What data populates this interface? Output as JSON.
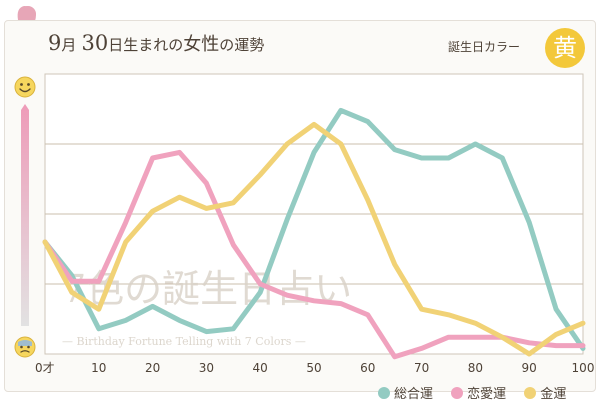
{
  "header": {
    "month": "9",
    "month_unit": "月",
    "day": "30",
    "born_text": "日生まれの",
    "gender": "女性",
    "fortune_text": "の運勢",
    "birth_color_label": "誕生日カラー",
    "birth_color_char": "黄",
    "birth_color_hex": "#f3c83a"
  },
  "watermark": {
    "main": "7色の誕生日占い",
    "sub": "— Birthday Fortune Telling with 7 Colors —"
  },
  "icons": {
    "top_face": "smile-face-icon",
    "bottom_face": "worried-face-icon",
    "silhouette": "woman-silhouette-icon"
  },
  "chart_data": {
    "type": "line",
    "x_label_suffix": "才",
    "x": [
      0,
      5,
      10,
      15,
      20,
      25,
      30,
      35,
      40,
      45,
      50,
      55,
      60,
      65,
      70,
      75,
      80,
      85,
      90,
      95,
      100
    ],
    "xlim": [
      0,
      100
    ],
    "ylim": [
      0,
      100
    ],
    "x_ticks": [
      "0才",
      "10",
      "20",
      "30",
      "40",
      "50",
      "60",
      "70",
      "80",
      "90",
      "100"
    ],
    "series": [
      {
        "name": "総合運",
        "color": "#93cbc2",
        "values": [
          40,
          28,
          9,
          12,
          17,
          12,
          8,
          9,
          22,
          48,
          72,
          87,
          83,
          73,
          70,
          70,
          75,
          70,
          47,
          16,
          2
        ]
      },
      {
        "name": "恋愛運",
        "color": "#f0a2be",
        "values": [
          40,
          26,
          26,
          47,
          70,
          72,
          61,
          39,
          25,
          21,
          19,
          18,
          14,
          -1,
          2,
          6,
          6,
          6,
          4,
          3,
          3
        ]
      },
      {
        "name": "金運",
        "color": "#f1d276",
        "values": [
          40,
          22,
          16,
          40,
          51,
          56,
          52,
          54,
          64,
          75,
          82,
          75,
          55,
          32,
          16,
          14,
          11,
          6,
          0,
          7,
          11
        ]
      }
    ],
    "grid": true,
    "legend": "bottom-right"
  }
}
